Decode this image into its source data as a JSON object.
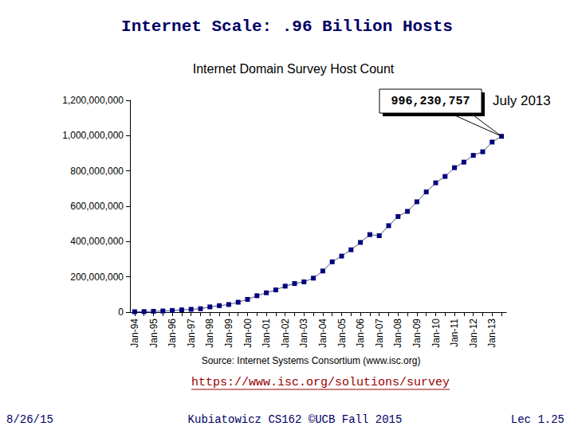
{
  "slide": {
    "title": "Internet Scale: .96 Billion Hosts",
    "link": "https://www.isc.org/solutions/survey",
    "footer": {
      "date": "8/26/15",
      "course": "Kubiatowicz CS162 ©UCB Fall 2015",
      "page": "Lec 1.25"
    }
  },
  "chart_data": {
    "type": "line",
    "title": "Internet Domain Survey Host Count",
    "source": "Source: Internet Systems Consortium (www.isc.org)",
    "annotations": [
      "996,230,757",
      "July 2013"
    ],
    "categories": [
      "Jan-94",
      null,
      "Jan-95",
      null,
      "Jan-96",
      null,
      "Jan-97",
      null,
      "Jan-98",
      null,
      "Jan-99",
      null,
      "Jan-00",
      null,
      "Jan-01",
      null,
      "Jan-02",
      null,
      "Jan-03",
      null,
      "Jan-04",
      null,
      "Jan-05",
      null,
      "Jan-06",
      null,
      "Jan-07",
      null,
      "Jan-08",
      null,
      "Jan-09",
      null,
      "Jan-10",
      null,
      "Jan-11",
      null,
      "Jan-12",
      null,
      "Jan-13",
      null
    ],
    "values": [
      2200000,
      3200000,
      4850000,
      6600000,
      9500000,
      12900000,
      16100000,
      19500000,
      29700000,
      36700000,
      43200000,
      56200000,
      72400000,
      93000000,
      109600000,
      125900000,
      147300000,
      162100000,
      171600000,
      192700000,
      233100000,
      285100000,
      317600000,
      353300000,
      395000000,
      439300000,
      433200000,
      489800000,
      541700000,
      570900000,
      625200000,
      681100000,
      732700000,
      768900000,
      818400000,
      849900000,
      888200000,
      908600000,
      963500000,
      996230757
    ],
    "color": "#000080",
    "marker": "square",
    "line_style": "solid",
    "grid": false,
    "ylim": [
      0,
      1200000000
    ],
    "yticks": [
      0,
      {
        "value": 200000000,
        "label": "200,000,000"
      },
      {
        "value": 400000000,
        "label": "400,000,000"
      },
      {
        "value": 600000000,
        "label": "600,000,000"
      },
      {
        "value": 800000000,
        "label": "800,000,000"
      },
      {
        "value": 1000000000,
        "label": "1,000,000,000"
      },
      {
        "value": 1200000000,
        "label": "1,200,000,000"
      }
    ]
  }
}
